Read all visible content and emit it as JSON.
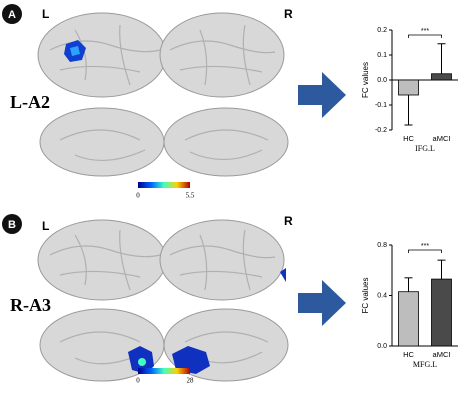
{
  "panels": [
    {
      "label": "A",
      "left": "L",
      "right": "R",
      "roi": "L-A2",
      "colorbar": [
        "0",
        "5.5"
      ]
    },
    {
      "label": "B",
      "left": "L",
      "right": "R",
      "roi": "R-A3",
      "colorbar": [
        "0",
        "28"
      ]
    }
  ],
  "chart_data": [
    {
      "type": "bar",
      "ylabel": "FC values",
      "xlabel": "IFG.L",
      "categories": [
        "HC",
        "aMCI"
      ],
      "values": [
        -0.06,
        0.025
      ],
      "errors": [
        0.12,
        0.12
      ],
      "colors": [
        "#bdbdbd",
        "#4a4a4a"
      ],
      "ylim": [
        -0.2,
        0.2
      ],
      "yticks": [
        -0.2,
        -0.1,
        {
          "value": 0,
          "label": "0.0"
        },
        0.1,
        0.2
      ],
      "annotation": "***"
    },
    {
      "type": "bar",
      "ylabel": "FC values",
      "xlabel": "MFG.L",
      "categories": [
        "HC",
        "aMCI"
      ],
      "values": [
        0.43,
        0.53
      ],
      "errors": [
        0.11,
        0.15
      ],
      "colors": [
        "#bdbdbd",
        "#4a4a4a"
      ],
      "ylim": [
        0,
        0.8
      ],
      "yticks": [
        {
          "value": 0,
          "label": "0.0"
        },
        0.4,
        0.8
      ],
      "annotation": "***"
    }
  ]
}
